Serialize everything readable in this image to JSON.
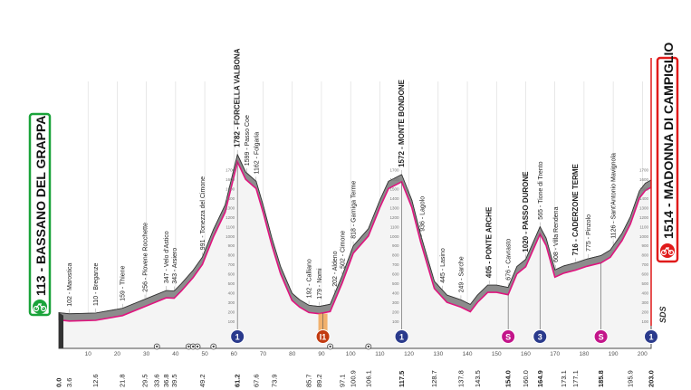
{
  "chart_data": {
    "type": "area",
    "unit": "km",
    "start": {
      "label": "113 - BASSANO DEL GRAPPA",
      "km": 0.0,
      "alt": 113
    },
    "finish": {
      "label": "1514 - MADONNA DI CAMPIGLIO",
      "km": 203.0,
      "alt": 1514
    },
    "profile": [
      [
        0,
        113
      ],
      [
        3.6,
        102
      ],
      [
        12.6,
        110
      ],
      [
        21.8,
        159
      ],
      [
        29.5,
        256
      ],
      [
        33,
        300
      ],
      [
        36.8,
        347
      ],
      [
        39.5,
        343
      ],
      [
        42,
        420
      ],
      [
        46,
        560
      ],
      [
        49.2,
        700
      ],
      [
        53,
        991
      ],
      [
        57,
        1250
      ],
      [
        61.2,
        1782
      ],
      [
        64,
        1599
      ],
      [
        67.6,
        1500
      ],
      [
        70,
        1250
      ],
      [
        73,
        900
      ],
      [
        76,
        600
      ],
      [
        79.9,
        320
      ],
      [
        82.5,
        250
      ],
      [
        85.7,
        192
      ],
      [
        89.2,
        179
      ],
      [
        93,
        202
      ],
      [
        97.1,
        502
      ],
      [
        100.9,
        818
      ],
      [
        106.1,
        1000
      ],
      [
        110,
        1300
      ],
      [
        113,
        1500
      ],
      [
        117.5,
        1572
      ],
      [
        121,
        1300
      ],
      [
        124,
        936
      ],
      [
        128.7,
        445
      ],
      [
        133,
        300
      ],
      [
        137.8,
        249
      ],
      [
        141,
        200
      ],
      [
        143.5,
        300
      ],
      [
        147,
        405
      ],
      [
        150,
        405
      ],
      [
        154.0,
        380
      ],
      [
        157,
        600
      ],
      [
        160.0,
        676
      ],
      [
        164.9,
        1020
      ],
      [
        167,
        900
      ],
      [
        170,
        565
      ],
      [
        173.1,
        608
      ],
      [
        177.1,
        640
      ],
      [
        181,
        680
      ],
      [
        185.8,
        716
      ],
      [
        189,
        775
      ],
      [
        193,
        950
      ],
      [
        195.9,
        1126
      ],
      [
        199,
        1400
      ],
      [
        201,
        1480
      ],
      [
        203.0,
        1514
      ]
    ],
    "km_markers": [
      "0.0",
      "3.6",
      "12.6",
      "21.8",
      "29.5",
      "33.6",
      "36.8",
      "39.5",
      "49.2",
      "61.2",
      "67.6",
      "73.9",
      "85.7",
      "89.2",
      "97.1",
      "100.9",
      "106.1",
      "117.5",
      "128.7",
      "137.8",
      "143.5",
      "154.0",
      "160.0",
      "164.9",
      "173.1",
      "177.1",
      "185.8",
      "195.9",
      "203.0"
    ],
    "axis_ticks": [
      "10",
      "20",
      "30",
      "40",
      "50",
      "60",
      "70",
      "80",
      "90",
      "100",
      "110",
      "120",
      "130",
      "140",
      "150",
      "160",
      "170",
      "180",
      "190",
      "200"
    ],
    "alt_ticks": [
      "100",
      "200",
      "300",
      "400",
      "500",
      "600",
      "700",
      "800",
      "900",
      "1000",
      "1100",
      "1200",
      "1300",
      "1400",
      "1500",
      "1600",
      "1700"
    ],
    "locations": [
      {
        "km": 3.6,
        "label": "102 - Marostica",
        "bold": false
      },
      {
        "km": 12.6,
        "label": "110 - Breganze",
        "bold": false
      },
      {
        "km": 21.8,
        "label": "159 - Thiene",
        "bold": false
      },
      {
        "km": 29.5,
        "label": "256 - Piovene Rocchette",
        "bold": false
      },
      {
        "km": 36.8,
        "label": "347 - Velo d'Astico",
        "bold": false
      },
      {
        "km": 39.5,
        "label": "343 - Arsiero",
        "bold": false
      },
      {
        "km": 49.2,
        "label": "991 - Tonezza del Cimone",
        "bold": false
      },
      {
        "km": 61.2,
        "label": "1782 - FORCELLA VALBONA",
        "bold": true
      },
      {
        "km": 64.4,
        "label": "1599 - Passo Coe",
        "bold": false
      },
      {
        "km": 67.6,
        "label": "1162 - Folgaria",
        "bold": false
      },
      {
        "km": 85.7,
        "label": "192 - Calliano",
        "bold": false
      },
      {
        "km": 89.2,
        "label": "179 - Nomi",
        "bold": false
      },
      {
        "km": 94.5,
        "label": "202 - Aldeno",
        "bold": false
      },
      {
        "km": 97.1,
        "label": "502 - Cimone",
        "bold": false
      },
      {
        "km": 100.9,
        "label": "818 - Garniga Terme",
        "bold": false
      },
      {
        "km": 117.5,
        "label": "1572 - MONTE BONDONE",
        "bold": true
      },
      {
        "km": 124.4,
        "label": "936 - Lagolo",
        "bold": false
      },
      {
        "km": 131.5,
        "label": "445 - Lasino",
        "bold": false
      },
      {
        "km": 137.8,
        "label": "249 - Sarche",
        "bold": false
      },
      {
        "km": 147.5,
        "label": "405 - PONTE ARCHE",
        "bold": true
      },
      {
        "km": 154.0,
        "label": "676 - Cavrasto",
        "bold": false
      },
      {
        "km": 160.0,
        "label": "1020 - PASSO DURONE",
        "bold": true
      },
      {
        "km": 164.9,
        "label": "565 - Tione di Trento",
        "bold": false
      },
      {
        "km": 170.3,
        "label": "608 - Villa Rendena",
        "bold": false
      },
      {
        "km": 177.1,
        "label": "716 - CADERZONE TERME",
        "bold": true
      },
      {
        "km": 181.5,
        "label": "775 - Pinzolo",
        "bold": false
      },
      {
        "km": 190.0,
        "label": "1126 - Sant'Antonio Mavignola",
        "bold": false
      }
    ],
    "badges": [
      {
        "km": 61.2,
        "text": "1",
        "color": "#2a3a8c"
      },
      {
        "km": 90.5,
        "text": "I1",
        "color": "#c23a10"
      },
      {
        "km": 117.5,
        "text": "1",
        "color": "#2a3a8c"
      },
      {
        "km": 154.0,
        "text": "S",
        "color": "#c3158a"
      },
      {
        "km": 164.9,
        "text": "3",
        "color": "#2a3a8c"
      },
      {
        "km": 185.8,
        "text": "S",
        "color": "#c3158a"
      },
      {
        "km": 203.0,
        "text": "1",
        "color": "#2a3a8c"
      }
    ],
    "refreshment_km": 90.5,
    "colors": {
      "profile_fill": "#8c8c8c",
      "road_line": "#e0147f",
      "start_border": "#1aa33a",
      "finish_border": "#e01a1a"
    },
    "logo": "SDS"
  }
}
